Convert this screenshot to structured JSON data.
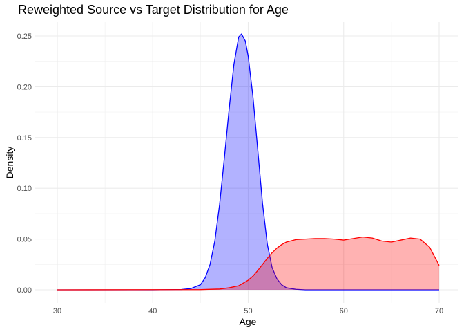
{
  "chart_data": {
    "type": "area",
    "title": "Reweighted Source vs Target Distribution for Age",
    "xlabel": "Age",
    "ylabel": "Density",
    "xlim": [
      30,
      70
    ],
    "ylim": [
      0,
      0.25
    ],
    "x_ticks": [
      30,
      40,
      50,
      60,
      70
    ],
    "x_tick_labels": [
      "30",
      "40",
      "50",
      "60",
      "70"
    ],
    "y_ticks": [
      0,
      0.05,
      0.1,
      0.15,
      0.2,
      0.25
    ],
    "y_tick_labels": [
      "0.00",
      "0.05",
      "0.10",
      "0.15",
      "0.20",
      "0.25"
    ],
    "grid": true,
    "legend": "none",
    "series": [
      {
        "color": "#0000ff",
        "fill": "#0000ff",
        "fill_opacity": 0.3,
        "x": [
          30,
          40,
          43,
          44,
          45,
          45.5,
          46,
          46.5,
          47,
          47.5,
          48,
          48.5,
          49,
          49.3,
          49.7,
          50,
          50.5,
          51,
          51.5,
          52,
          52.5,
          53,
          53.5,
          54,
          55,
          56,
          70
        ],
        "y": [
          0,
          0,
          0.0003,
          0.0013,
          0.005,
          0.012,
          0.025,
          0.048,
          0.084,
          0.13,
          0.178,
          0.222,
          0.249,
          0.252,
          0.245,
          0.23,
          0.19,
          0.138,
          0.085,
          0.045,
          0.022,
          0.011,
          0.005,
          0.002,
          0.0005,
          0,
          0
        ]
      },
      {
        "color": "#ff0000",
        "fill": "#ff0000",
        "fill_opacity": 0.3,
        "x": [
          30,
          45,
          47,
          48,
          49,
          50,
          50.5,
          51,
          51.5,
          52,
          52.5,
          53,
          53.5,
          54,
          55,
          56,
          57,
          58,
          59,
          60,
          61,
          62,
          63,
          64,
          65,
          66,
          67,
          68,
          69,
          70
        ],
        "y": [
          0,
          0.0002,
          0.0008,
          0.002,
          0.004,
          0.0095,
          0.0135,
          0.019,
          0.025,
          0.031,
          0.0365,
          0.041,
          0.0445,
          0.047,
          0.0495,
          0.05,
          0.0505,
          0.0505,
          0.05,
          0.049,
          0.0505,
          0.052,
          0.051,
          0.048,
          0.047,
          0.049,
          0.051,
          0.05,
          0.042,
          0.024
        ]
      }
    ]
  }
}
